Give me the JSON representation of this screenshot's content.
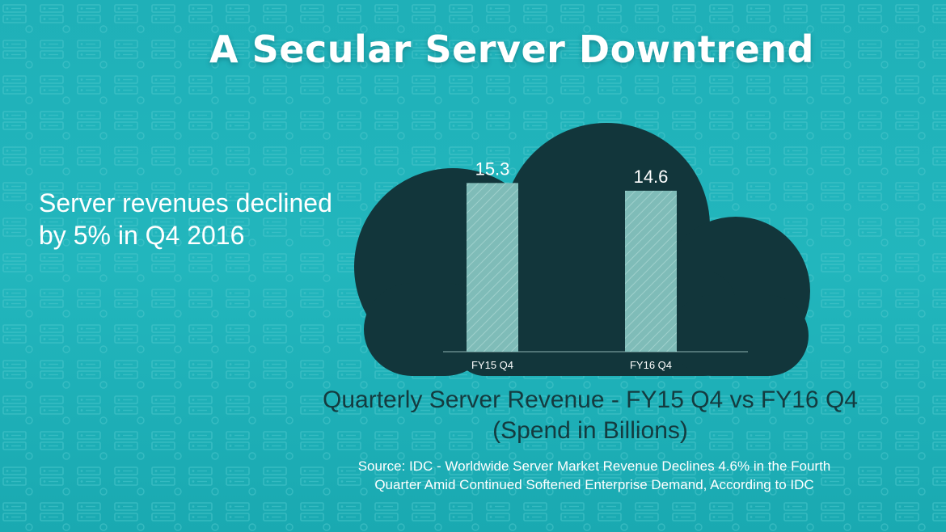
{
  "title": "A Secular Server Downtrend",
  "headline": {
    "line1": "Server revenues declined",
    "line2": "by 5% in Q4 2016"
  },
  "caption": {
    "line1": "Quarterly Server Revenue - FY15 Q4 vs FY16 Q4",
    "line2": "(Spend in Billions)"
  },
  "source": {
    "line1": "Source: IDC - Worldwide Server Market Revenue Declines 4.6% in the Fourth",
    "line2": "Quarter Amid Continued Softened Enterprise Demand, According to IDC"
  },
  "colors": {
    "background": "#22b6bd",
    "cloud": "#12363b",
    "bar": "#7fbcb8",
    "text_dark": "#143b3f"
  },
  "chart_data": {
    "type": "bar",
    "categories": [
      "FY15 Q4",
      "FY16 Q4"
    ],
    "values": [
      15.3,
      14.6
    ],
    "data_labels": [
      "15.3",
      "14.6"
    ],
    "ylim": [
      0,
      16.5
    ],
    "grid": false,
    "legend": "none"
  }
}
